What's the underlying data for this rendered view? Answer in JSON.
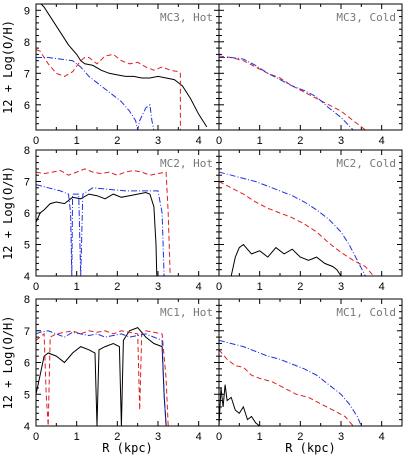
{
  "colors": {
    "hot_black": "#000000",
    "red_dashed": "#e02020",
    "blue_dashdot": "#2030e0"
  },
  "chart_data": [
    {
      "panel": "MC3, Hot",
      "type": "line",
      "title": "MC3, Hot",
      "xlabel": "",
      "ylabel": "12 + Log(O/H)",
      "xlim": [
        0,
        4.5
      ],
      "ylim": [
        5.2,
        9.2
      ],
      "xticks": [
        "0",
        "1",
        "2",
        "3",
        "4"
      ],
      "yticks": [
        "6",
        "7",
        "8",
        "9"
      ],
      "series": [
        {
          "style": "solid",
          "color": "#000000",
          "x": [
            0.05,
            0.2,
            0.4,
            0.6,
            0.8,
            1.0,
            1.1,
            1.2,
            1.4,
            1.6,
            1.8,
            2.0,
            2.2,
            2.4,
            2.6,
            2.8,
            3.0,
            3.2,
            3.4,
            3.6,
            3.8,
            4.0,
            4.2
          ],
          "y": [
            9.3,
            9.1,
            8.7,
            8.3,
            7.9,
            7.6,
            7.4,
            7.3,
            7.25,
            7.1,
            7.0,
            6.95,
            6.9,
            6.9,
            6.85,
            6.85,
            6.9,
            6.85,
            6.8,
            6.6,
            6.2,
            5.7,
            5.3
          ]
        },
        {
          "style": "dashed",
          "color": "#e02020",
          "x": [
            0.0,
            0.1,
            0.3,
            0.5,
            0.7,
            0.9,
            1.1,
            1.2,
            1.3,
            1.5,
            1.7,
            1.9,
            2.1,
            2.3,
            2.5,
            2.7,
            2.9,
            3.1,
            3.3,
            3.5,
            3.55,
            3.55,
            3.6
          ],
          "y": [
            7.75,
            7.7,
            7.3,
            7.0,
            6.9,
            7.05,
            7.4,
            7.5,
            7.5,
            7.3,
            7.55,
            7.6,
            7.4,
            7.3,
            7.35,
            7.2,
            7.1,
            7.2,
            7.1,
            7.05,
            7.0,
            5.2,
            5.2
          ]
        },
        {
          "style": "dashdot",
          "color": "#2030e0",
          "x": [
            0.0,
            0.3,
            0.6,
            0.9,
            1.1,
            1.3,
            1.5,
            1.7,
            1.9,
            2.1,
            2.3,
            2.45,
            2.5,
            2.55,
            2.7,
            2.8,
            2.85,
            2.9
          ],
          "y": [
            7.5,
            7.5,
            7.45,
            7.4,
            7.2,
            6.9,
            6.7,
            6.5,
            6.3,
            6.1,
            5.8,
            5.5,
            5.2,
            5.5,
            5.9,
            6.0,
            5.5,
            5.2
          ]
        }
      ]
    },
    {
      "panel": "MC3, Cold",
      "type": "line",
      "title": "MC3, Cold",
      "xlabel": "",
      "ylabel": "",
      "xlim": [
        0,
        4.5
      ],
      "ylim": [
        5.2,
        9.2
      ],
      "xticks": [
        "0",
        "1",
        "2",
        "3",
        "4"
      ],
      "yticks": [],
      "series": [
        {
          "style": "dashed",
          "color": "#e02020",
          "x": [
            0.0,
            0.3,
            0.6,
            0.9,
            1.2,
            1.5,
            1.8,
            2.1,
            2.4,
            2.7,
            3.0,
            3.3,
            3.6
          ],
          "y": [
            7.55,
            7.5,
            7.4,
            7.2,
            7.0,
            6.85,
            6.6,
            6.4,
            6.2,
            6.0,
            5.8,
            5.5,
            5.2
          ]
        },
        {
          "style": "dashdot",
          "color": "#2030e0",
          "x": [
            0.0,
            0.3,
            0.6,
            0.9,
            1.2,
            1.5,
            1.8,
            2.1,
            2.4,
            2.7,
            3.0,
            3.3
          ],
          "y": [
            7.5,
            7.5,
            7.45,
            7.25,
            7.0,
            6.8,
            6.6,
            6.45,
            6.25,
            5.9,
            5.6,
            5.2
          ]
        }
      ]
    },
    {
      "panel": "MC2, Hot",
      "type": "line",
      "title": "MC2, Hot",
      "xlabel": "",
      "ylabel": "12 + Log(O/H)",
      "xlim": [
        0,
        4.5
      ],
      "ylim": [
        4.0,
        8.0
      ],
      "xticks": [
        "0",
        "1",
        "2",
        "3",
        "4"
      ],
      "yticks": [
        "4",
        "5",
        "6",
        "7",
        "8"
      ],
      "series": [
        {
          "style": "solid",
          "color": "#000000",
          "x": [
            0.0,
            0.1,
            0.2,
            0.35,
            0.5,
            0.7,
            0.9,
            1.1,
            1.3,
            1.5,
            1.7,
            1.9,
            2.1,
            2.3,
            2.5,
            2.7,
            2.8,
            2.9,
            2.95,
            2.97
          ],
          "y": [
            5.7,
            6.0,
            6.1,
            6.3,
            6.35,
            6.3,
            6.5,
            6.45,
            6.6,
            6.55,
            6.45,
            6.6,
            6.5,
            6.55,
            6.6,
            6.65,
            6.6,
            6.2,
            5.0,
            4.0
          ]
        },
        {
          "style": "dashed",
          "color": "#e02020",
          "x": [
            0.0,
            0.2,
            0.4,
            0.6,
            0.8,
            1.0,
            1.2,
            1.4,
            1.6,
            1.8,
            2.0,
            2.2,
            2.4,
            2.6,
            2.8,
            3.0,
            3.2,
            3.25,
            3.3
          ],
          "y": [
            7.3,
            7.25,
            7.3,
            7.35,
            7.2,
            7.3,
            7.4,
            7.3,
            7.25,
            7.3,
            7.2,
            7.3,
            7.35,
            7.3,
            7.2,
            7.25,
            7.3,
            6.0,
            4.0
          ]
        },
        {
          "style": "dashdot",
          "color": "#2030e0",
          "x": [
            0.0,
            0.3,
            0.6,
            0.8,
            0.85,
            0.88,
            0.9,
            1.05,
            1.1,
            1.15,
            1.4,
            1.8,
            2.2,
            2.6,
            3.0,
            3.1,
            3.15
          ],
          "y": [
            6.9,
            6.8,
            6.7,
            6.6,
            6.0,
            4.0,
            6.6,
            6.6,
            4.0,
            6.6,
            6.8,
            6.75,
            6.7,
            6.7,
            6.7,
            6.0,
            4.0
          ]
        }
      ]
    },
    {
      "panel": "MC2, Cold",
      "type": "line",
      "title": "MC2, Cold",
      "xlabel": "",
      "ylabel": "",
      "xlim": [
        0,
        4.5
      ],
      "ylim": [
        4.0,
        8.0
      ],
      "xticks": [
        "0",
        "1",
        "2",
        "3",
        "4"
      ],
      "yticks": [],
      "series": [
        {
          "style": "solid",
          "color": "#000000",
          "x": [
            0.3,
            0.4,
            0.5,
            0.6,
            0.8,
            1.0,
            1.2,
            1.4,
            1.6,
            1.8,
            2.0,
            2.2,
            2.4,
            2.6,
            2.8,
            2.9,
            3.0
          ],
          "y": [
            4.0,
            4.6,
            4.9,
            5.0,
            4.7,
            4.8,
            4.6,
            4.9,
            4.7,
            4.85,
            4.6,
            4.5,
            4.6,
            4.4,
            4.3,
            4.2,
            4.0
          ]
        },
        {
          "style": "dashed",
          "color": "#e02020",
          "x": [
            0.0,
            0.3,
            0.6,
            0.9,
            1.2,
            1.5,
            1.8,
            2.1,
            2.4,
            2.7,
            3.0,
            3.3,
            3.6,
            3.8
          ],
          "y": [
            7.0,
            6.8,
            6.6,
            6.35,
            6.15,
            6.0,
            5.85,
            5.65,
            5.4,
            5.05,
            4.75,
            4.5,
            4.3,
            4.0
          ]
        },
        {
          "style": "dashdot",
          "color": "#2030e0",
          "x": [
            0.0,
            0.3,
            0.6,
            0.9,
            1.2,
            1.5,
            1.8,
            2.1,
            2.4,
            2.7,
            3.0,
            3.2,
            3.4,
            3.6
          ],
          "y": [
            7.3,
            7.2,
            7.1,
            7.0,
            6.85,
            6.7,
            6.55,
            6.35,
            6.1,
            5.8,
            5.4,
            5.0,
            4.5,
            4.0
          ]
        }
      ]
    },
    {
      "panel": "MC1, Hot",
      "type": "line",
      "title": "MC1, Hot",
      "xlabel": "R (kpc)",
      "ylabel": "12 + Log(O/H)",
      "xlim": [
        0,
        4.5
      ],
      "ylim": [
        4.0,
        8.0
      ],
      "xticks": [
        "0",
        "1",
        "2",
        "3",
        "4"
      ],
      "yticks": [
        "4",
        "5",
        "6",
        "7",
        "8"
      ],
      "series": [
        {
          "style": "solid",
          "color": "#000000",
          "x": [
            0.0,
            0.1,
            0.2,
            0.3,
            0.5,
            0.7,
            0.9,
            1.1,
            1.3,
            1.45,
            1.5,
            1.55,
            1.7,
            1.9,
            2.05,
            2.1,
            2.15,
            2.3,
            2.5,
            2.7,
            2.9,
            3.1,
            3.15,
            3.2
          ],
          "y": [
            5.0,
            5.6,
            6.2,
            6.3,
            6.2,
            6.0,
            6.3,
            6.5,
            6.4,
            6.3,
            4.0,
            6.4,
            6.5,
            6.6,
            6.5,
            4.0,
            6.7,
            7.0,
            7.1,
            6.8,
            6.6,
            6.5,
            5.0,
            4.0
          ]
        },
        {
          "style": "dashed",
          "color": "#e02020",
          "x": [
            0.0,
            0.1,
            0.2,
            0.25,
            0.3,
            0.35,
            0.5,
            0.7,
            0.9,
            1.1,
            1.3,
            1.5,
            1.7,
            1.9,
            2.1,
            2.3,
            2.5,
            2.55,
            2.6,
            2.7,
            2.9,
            3.1,
            3.2,
            3.25
          ],
          "y": [
            6.7,
            6.8,
            6.9,
            5.0,
            4.0,
            6.8,
            6.9,
            6.95,
            7.0,
            6.9,
            7.0,
            6.95,
            7.0,
            6.9,
            7.0,
            6.95,
            6.9,
            4.5,
            6.9,
            7.0,
            6.95,
            6.9,
            5.5,
            4.0
          ]
        },
        {
          "style": "dashdot",
          "color": "#2030e0",
          "x": [
            0.0,
            0.1,
            0.3,
            0.5,
            0.7,
            0.9,
            1.1,
            1.3,
            1.5,
            1.7,
            1.9,
            2.1,
            2.3,
            2.5,
            2.7,
            2.9,
            3.1,
            3.15,
            3.2
          ],
          "y": [
            6.9,
            6.95,
            7.0,
            6.9,
            6.8,
            6.95,
            6.9,
            6.85,
            6.9,
            6.8,
            6.85,
            6.9,
            6.8,
            6.85,
            6.9,
            6.8,
            6.7,
            5.0,
            4.0
          ]
        }
      ]
    },
    {
      "panel": "MC1, Cold",
      "type": "line",
      "title": "MC1, Cold",
      "xlabel": "R (kpc)",
      "ylabel": "",
      "xlim": [
        0,
        4.5
      ],
      "ylim": [
        4.0,
        8.0
      ],
      "xticks": [
        "0",
        "1",
        "2",
        "3",
        "4"
      ],
      "yticks": [],
      "series": [
        {
          "style": "solid",
          "color": "#000000",
          "x": [
            0.0,
            0.05,
            0.1,
            0.15,
            0.2,
            0.3,
            0.4,
            0.5,
            0.6,
            0.7,
            0.8,
            0.9,
            1.0
          ],
          "y": [
            4.0,
            5.2,
            4.6,
            5.3,
            4.8,
            4.9,
            4.5,
            4.4,
            4.6,
            4.2,
            4.3,
            4.1,
            4.0
          ]
        },
        {
          "style": "dashed",
          "color": "#e02020",
          "x": [
            0.0,
            0.2,
            0.4,
            0.6,
            0.8,
            1.0,
            1.3,
            1.6,
            1.9,
            2.2,
            2.5,
            2.8,
            3.1,
            3.3
          ],
          "y": [
            6.4,
            6.1,
            5.9,
            5.85,
            5.6,
            5.5,
            5.4,
            5.2,
            5.0,
            4.9,
            4.7,
            4.5,
            4.3,
            4.0
          ]
        },
        {
          "style": "dashdot",
          "color": "#2030e0",
          "x": [
            0.0,
            0.3,
            0.6,
            0.9,
            1.2,
            1.5,
            1.8,
            2.1,
            2.4,
            2.7,
            3.0,
            3.2,
            3.4,
            3.5
          ],
          "y": [
            6.7,
            6.6,
            6.5,
            6.35,
            6.2,
            6.1,
            5.95,
            5.8,
            5.6,
            5.3,
            5.0,
            4.7,
            4.3,
            4.0
          ]
        }
      ]
    }
  ]
}
